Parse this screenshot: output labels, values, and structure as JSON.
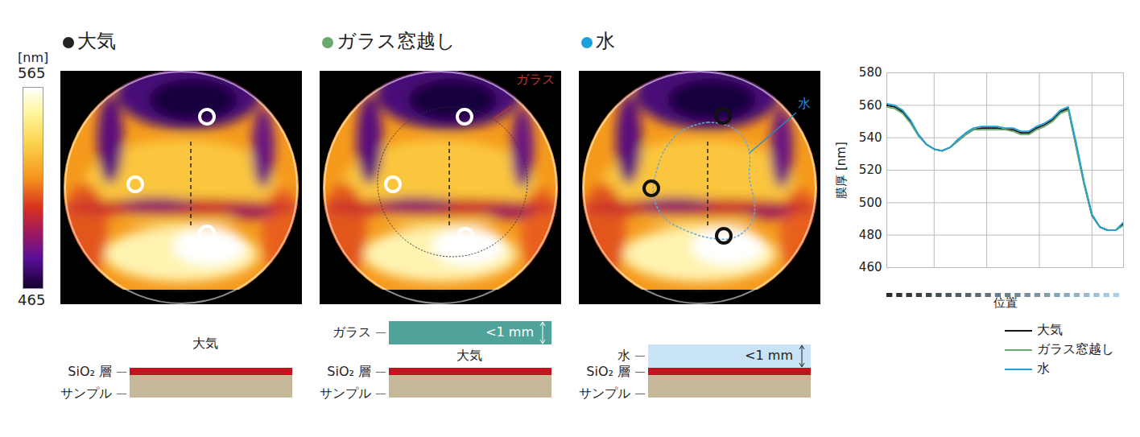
{
  "colorbar": {
    "label": "[nm]",
    "range": [
      465,
      565
    ],
    "ticks": [
      565,
      465
    ]
  },
  "panels": [
    {
      "title": "大気",
      "color": "#222222",
      "ring_color": "#ffffff",
      "diagram": {
        "above": "大気",
        "film": "SiO₂ 層",
        "substrate": "サンプル"
      }
    },
    {
      "title": "ガラス窓越し",
      "color": "#6aaa6f",
      "ring_color": "#ffffff",
      "annotation": "ガラス",
      "annotation_color": "#c0392b",
      "diagram": {
        "cover": "ガラス",
        "cover_thickness": "<1 mm",
        "above": "大気",
        "film": "SiO₂ 層",
        "substrate": "サンプル"
      }
    },
    {
      "title": "水",
      "color": "#1ea0dc",
      "ring_color": "#111111",
      "annotation": "水",
      "annotation_color": "#1e8fd0",
      "diagram": {
        "cover": "水",
        "cover_thickness": "<1 mm",
        "film": "SiO₂ 層",
        "substrate": "サンプル"
      }
    }
  ],
  "chart_data": {
    "type": "line",
    "xlabel": "位置",
    "ylabel": "膜厚 [nm]",
    "x": [
      0,
      1.5,
      3,
      4.5,
      6,
      7.5,
      9,
      10.5,
      12,
      13.5,
      15,
      16.5,
      18,
      19.5,
      21,
      22.5,
      24,
      25.5,
      27,
      28.5,
      30,
      31.5,
      33,
      34.5,
      36,
      37.5,
      39,
      40.5,
      42,
      43.5,
      45
    ],
    "xlim": [
      0,
      45
    ],
    "xticks": [
      9,
      19,
      29,
      39
    ],
    "ylim": [
      460,
      580
    ],
    "yticks": [
      460,
      480,
      500,
      520,
      540,
      560,
      580
    ],
    "grid": true,
    "tick_labels": "y",
    "legend": "bottom",
    "series": [
      {
        "name": "大気",
        "color": "#111111",
        "line_style": "solid",
        "values": [
          560,
          559,
          556,
          550,
          542,
          536,
          533,
          532,
          534,
          538,
          542,
          545,
          546,
          546,
          546,
          545,
          545,
          543,
          543,
          546,
          548,
          551,
          556,
          558,
          535,
          512,
          492,
          485,
          483,
          483,
          487
        ]
      },
      {
        "name": "ガラス窓越し",
        "color": "#6aaa6f",
        "line_style": "solid",
        "values": [
          559,
          558,
          555,
          549,
          541,
          536,
          533,
          532,
          534,
          538,
          542,
          545,
          545,
          545,
          545,
          545,
          544,
          542,
          542,
          545,
          547,
          550,
          555,
          557,
          534,
          511,
          492,
          485,
          483,
          483,
          486
        ]
      },
      {
        "name": "水",
        "color": "#1ea0dc",
        "line_style": "solid",
        "values": [
          561,
          560,
          557,
          551,
          542,
          536,
          533,
          532,
          534,
          539,
          543,
          546,
          547,
          547,
          547,
          546,
          546,
          544,
          544,
          547,
          549,
          552,
          557,
          559,
          537,
          513,
          493,
          485,
          483,
          483,
          488
        ]
      }
    ]
  }
}
